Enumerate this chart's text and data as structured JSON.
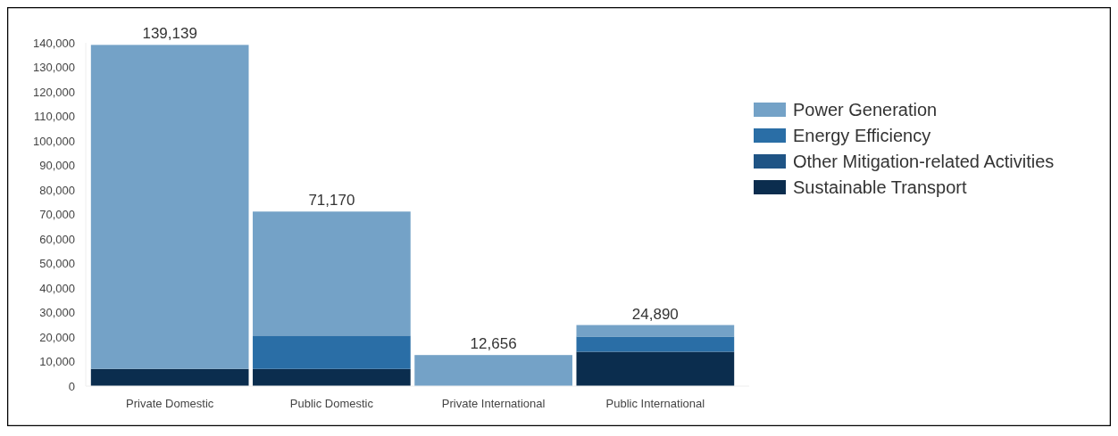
{
  "chart_data": {
    "type": "bar",
    "stacked": true,
    "categories": [
      "Private Domestic",
      "Public Domestic",
      "Private International",
      "Public International"
    ],
    "series": [
      {
        "name": "Sustainable Transport",
        "color": "#0b2d4e",
        "values": [
          7000,
          7000,
          0,
          14000
        ]
      },
      {
        "name": "Other Mitigation-related Activities",
        "color": "#1f5485",
        "values": [
          0,
          0,
          0,
          0
        ]
      },
      {
        "name": "Energy Efficiency",
        "color": "#2a6ea6",
        "values": [
          0,
          13600,
          0,
          6200
        ]
      },
      {
        "name": "Power Generation",
        "color": "#74a2c7",
        "values": [
          132139,
          50570,
          12656,
          4690
        ]
      }
    ],
    "totals": [
      "139,139",
      "71,170",
      "12,656",
      "24,890"
    ],
    "ylim": [
      0,
      140000
    ],
    "yticks": [
      {
        "value": 0,
        "label": "0"
      },
      {
        "value": 10000,
        "label": "10,000"
      },
      {
        "value": 20000,
        "label": "20,000"
      },
      {
        "value": 30000,
        "label": "30,000"
      },
      {
        "value": 40000,
        "label": "40,000"
      },
      {
        "value": 50000,
        "label": "50,000"
      },
      {
        "value": 60000,
        "label": "60,000"
      },
      {
        "value": 70000,
        "label": "70,000"
      },
      {
        "value": 80000,
        "label": "80,000"
      },
      {
        "value": 90000,
        "label": "90,000"
      },
      {
        "value": 100000,
        "label": "100,000"
      },
      {
        "value": 110000,
        "label": "110,000"
      },
      {
        "value": 120000,
        "label": "120,000"
      },
      {
        "value": 130000,
        "label": "130,000"
      },
      {
        "value": 140000,
        "label": "140,000"
      }
    ],
    "legend": "top right",
    "grid": false
  }
}
